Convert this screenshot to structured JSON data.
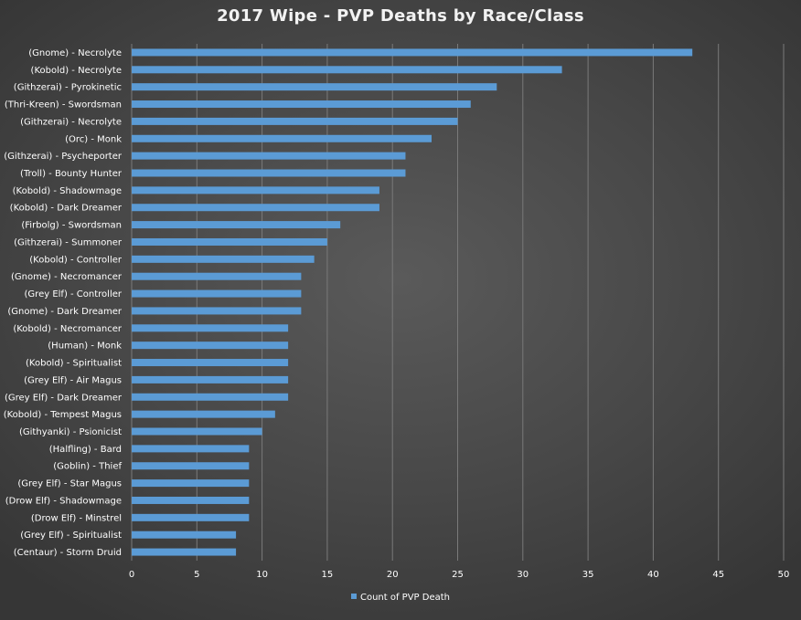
{
  "chart_data": {
    "type": "bar",
    "orientation": "horizontal",
    "title": "2017 Wipe - PVP Deaths by Race/Class",
    "categories": [
      "(Gnome) - Necrolyte",
      "(Kobold) - Necrolyte",
      "(Githzerai) - Pyrokinetic",
      "(Thri-Kreen) - Swordsman",
      "(Githzerai) - Necrolyte",
      "(Orc) - Monk",
      "(Githzerai) - Psycheporter",
      "(Troll) - Bounty Hunter",
      "(Kobold) - Shadowmage",
      "(Kobold) - Dark Dreamer",
      "(Firbolg) - Swordsman",
      "(Githzerai) - Summoner",
      "(Kobold) - Controller",
      "(Gnome) - Necromancer",
      "(Grey Elf) - Controller",
      "(Gnome) - Dark Dreamer",
      "(Kobold) - Necromancer",
      "(Human) - Monk",
      "(Kobold) - Spiritualist",
      "(Grey Elf) - Air Magus",
      "(Grey Elf) - Dark Dreamer",
      "(Kobold) - Tempest Magus",
      "(Githyanki) - Psionicist",
      "(Halfling) - Bard",
      "(Goblin) - Thief",
      "(Grey Elf) - Star Magus",
      "(Drow Elf) - Shadowmage",
      "(Drow Elf) - Minstrel",
      "(Grey Elf) - Spiritualist",
      "(Centaur) - Storm Druid"
    ],
    "series": [
      {
        "name": "Count of PVP Death",
        "values": [
          43,
          33,
          28,
          26,
          25,
          23,
          21,
          21,
          19,
          19,
          16,
          15,
          14,
          13,
          13,
          13,
          12,
          12,
          12,
          12,
          12,
          11,
          10,
          9,
          9,
          9,
          9,
          9,
          8,
          8
        ]
      }
    ],
    "xlim": [
      0,
      50
    ],
    "x_ticks": [
      0,
      5,
      10,
      15,
      20,
      25,
      30,
      35,
      40,
      45,
      50
    ],
    "xlabel": "",
    "ylabel": "",
    "grid": "vertical",
    "legend_position": "bottom",
    "colors": {
      "bar": "#5b9bd5",
      "grid": "#7a7a7a",
      "text": "#ffffff"
    }
  }
}
